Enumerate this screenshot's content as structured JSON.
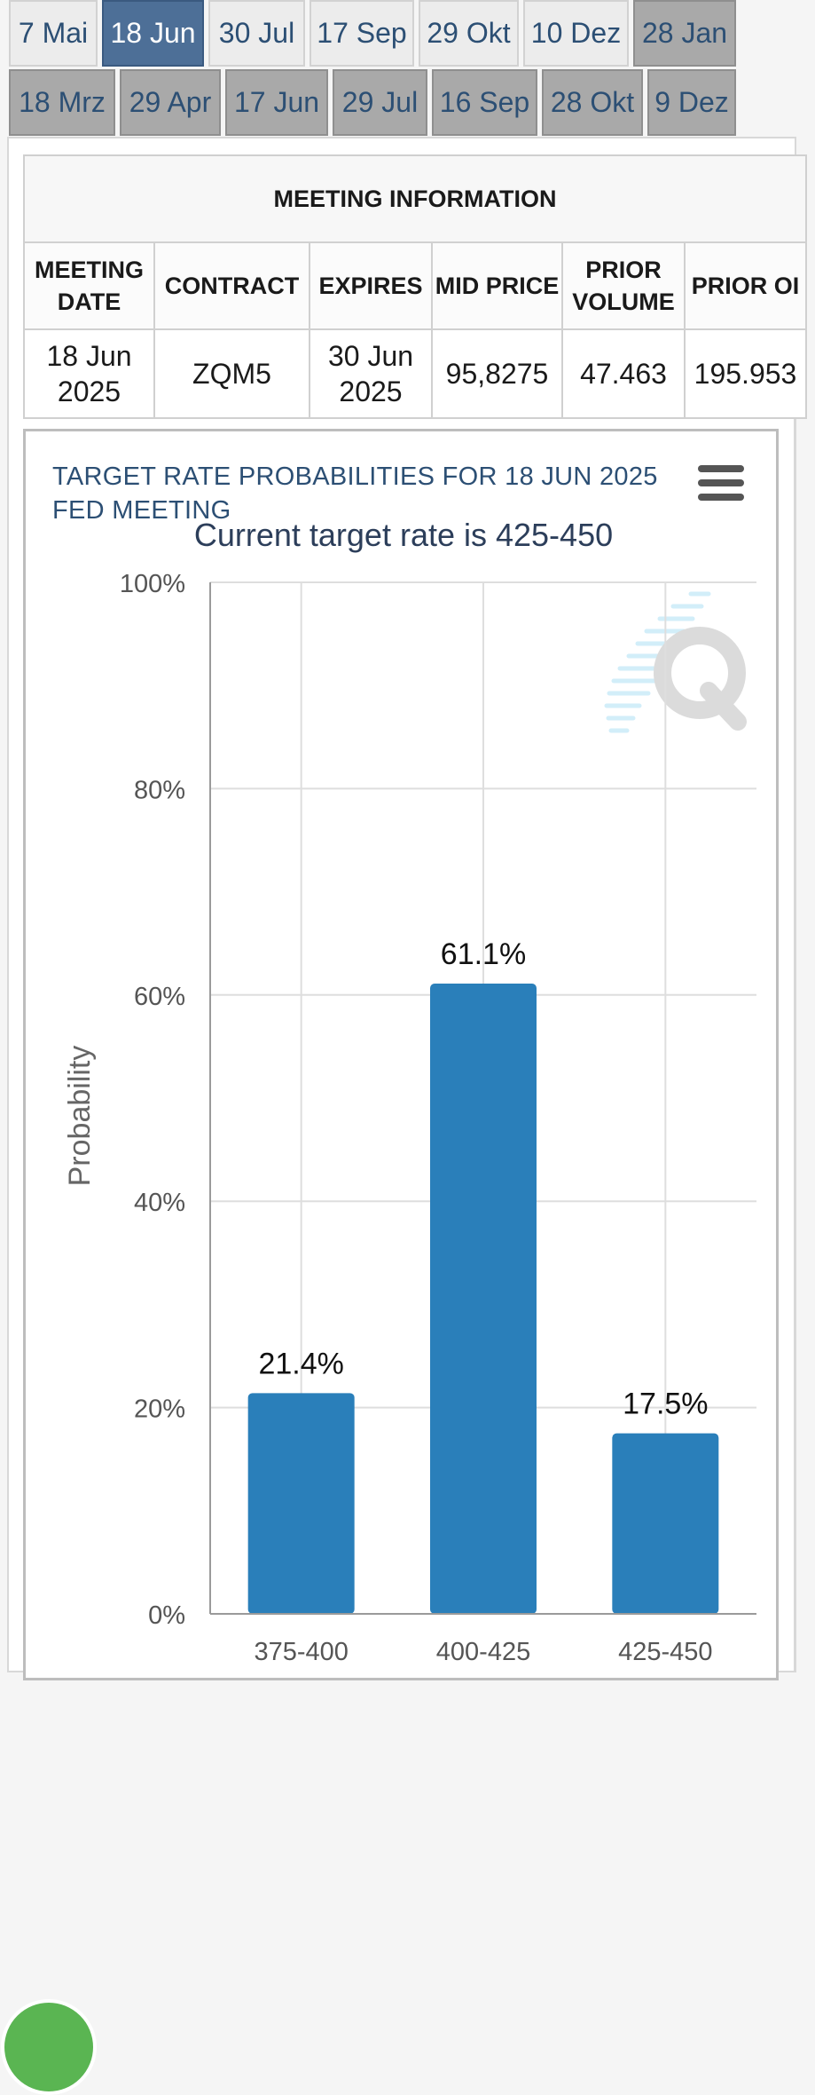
{
  "tabs_row1": [
    {
      "label": "7 Mai",
      "state": "normal"
    },
    {
      "label": "18 Jun",
      "state": "active"
    },
    {
      "label": "30 Jul",
      "state": "normal"
    },
    {
      "label": "17 Sep",
      "state": "normal"
    },
    {
      "label": "29 Okt",
      "state": "normal"
    },
    {
      "label": "10 Dez",
      "state": "normal"
    },
    {
      "label": "28 Jan",
      "state": "grey"
    }
  ],
  "tabs_row2": [
    {
      "label": "18 Mrz",
      "state": "grey"
    },
    {
      "label": "29 Apr",
      "state": "grey"
    },
    {
      "label": "17 Jun",
      "state": "grey"
    },
    {
      "label": "29 Jul",
      "state": "grey"
    },
    {
      "label": "16 Sep",
      "state": "grey"
    },
    {
      "label": "28 Okt",
      "state": "grey"
    },
    {
      "label": "9 Dez",
      "state": "grey"
    }
  ],
  "meeting_info": {
    "title": "MEETING INFORMATION",
    "headers": [
      "MEETING DATE",
      "CONTRACT",
      "EXPIRES",
      "MID PRICE",
      "PRIOR VOLUME",
      "PRIOR OI"
    ],
    "row": [
      "18 Jun 2025",
      "ZQM5",
      "30 Jun 2025",
      "95,8275",
      "47.463",
      "195.953"
    ]
  },
  "chart_panel": {
    "title": "TARGET RATE PROBABILITIES FOR 18 JUN 2025 FED MEETING",
    "menu_icon": "hamburger-menu-icon"
  },
  "chart_data": {
    "type": "bar",
    "title": "TARGET RATE PROBABILITIES FOR 18 JUN 2025 FED MEETING",
    "subtitle": "Current target rate is 425-450",
    "categories": [
      "375-400",
      "400-425",
      "425-450"
    ],
    "values": [
      21.4,
      61.1,
      17.5
    ],
    "data_labels": [
      "21.4%",
      "61.1%",
      "17.5%"
    ],
    "ylabel": "Probability",
    "xlabel": "",
    "ylim": [
      0,
      100
    ],
    "yticks": [
      "0%",
      "20%",
      "40%",
      "60%",
      "80%",
      "100%"
    ],
    "ytick_values": [
      0,
      20,
      40,
      60,
      80,
      100
    ],
    "grid": true,
    "bar_color": "#2a7fba"
  },
  "colors": {
    "active_tab": "#4d6f97",
    "grey_tab": "#a9a9a9",
    "tab_text": "#2c4f74",
    "fab": "#5ab552"
  }
}
